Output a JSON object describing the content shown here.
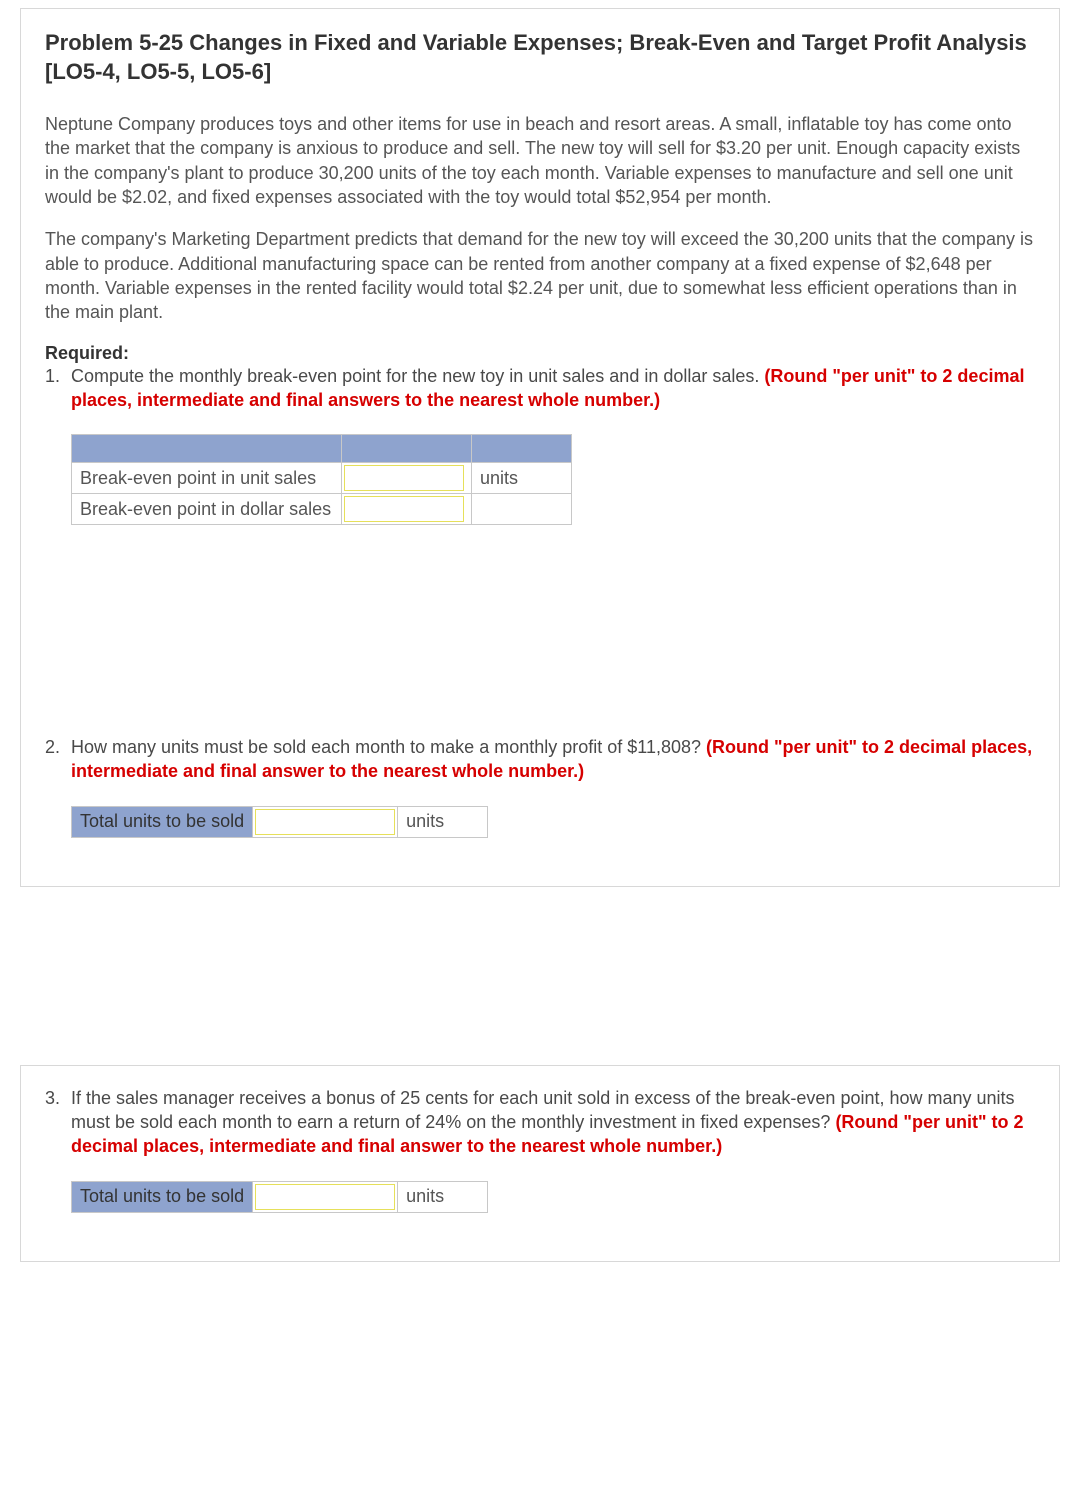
{
  "title": "Problem 5-25 Changes in Fixed and Variable Expenses; Break-Even and Target Profit Analysis [LO5-4, LO5-5, LO5-6]",
  "paragraph1": "Neptune Company produces toys and other items for use in beach and resort areas. A small, inflatable toy has come onto the market that the company is anxious to produce and sell. The new toy will sell for $3.20 per unit. Enough capacity exists in the company's plant to produce 30,200 units of the toy each month. Variable expenses to manufacture and sell one unit would be $2.02, and fixed expenses associated with the toy would total $52,954 per month.",
  "paragraph2": "The company's Marketing Department predicts that demand for the new toy will exceed the 30,200 units that the company is able to produce. Additional manufacturing space can be rented from another company at a fixed expense of $2,648 per month. Variable expenses in the rented facility would total $2.24 per unit, due to somewhat less efficient operations than in the main plant.",
  "required_label": "Required:",
  "q1": {
    "num": "1.",
    "text": "Compute the monthly break-even point for the new toy in unit sales and in dollar sales. ",
    "instr": "(Round \"per unit\" to 2 decimal places, intermediate and final answers to the nearest whole number.)",
    "row1_label": "Break-even point in unit sales",
    "row1_units": "units",
    "row2_label": "Break-even point in dollar sales",
    "row1_value": "",
    "row2_value": ""
  },
  "q2": {
    "num": "2.",
    "text": "How many units must be sold each month to make a monthly profit of $11,808? ",
    "instr": "(Round \"per unit\" to 2 decimal places, intermediate and final answer to the nearest whole number.)",
    "label": "Total units to be sold",
    "units": "units",
    "value": ""
  },
  "q3": {
    "num": "3.",
    "text": "If the sales manager receives a bonus of 25 cents for each unit sold in excess of the break-even point, how many units must be sold each month to earn a return of 24% on the monthly investment in fixed expenses? ",
    "instr": "(Round \"per unit\" to 2 decimal places, intermediate and final answer to the nearest whole number.)",
    "label": "Total units to be sold",
    "units": "units",
    "value": ""
  },
  "colors": {
    "header_bg": "#8ea3ce",
    "input_border": "#e6e05a",
    "panel_border": "#d8d8d8",
    "instruction": "#d60000"
  }
}
